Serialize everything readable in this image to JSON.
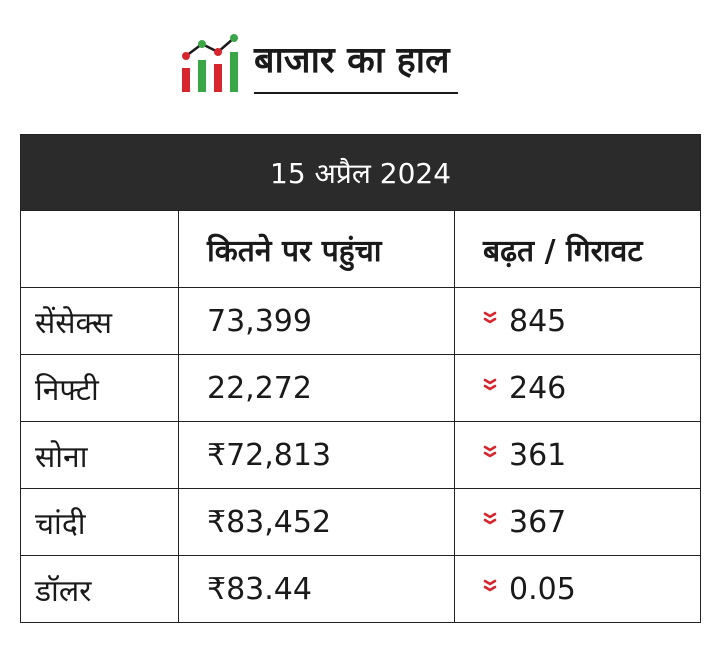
{
  "header": {
    "title": "बाजार का हाल",
    "logo_icon": "market-bar-chart-icon",
    "logo_colors": [
      "#d7262e",
      "#3aa648"
    ]
  },
  "table": {
    "date": "15 अप्रैल 2024",
    "columns": [
      "",
      "कितने पर पहुंचा",
      "बढ़त / गिरावट"
    ],
    "rows": [
      {
        "name": "सेंसेक्स",
        "value": "73,399",
        "change": "845",
        "direction": "down"
      },
      {
        "name": "निफ्टी",
        "value": "22,272",
        "change": "246",
        "direction": "down"
      },
      {
        "name": "सोना",
        "value": "₹72,813",
        "change": "361",
        "direction": "down"
      },
      {
        "name": "चांदी",
        "value": "₹83,452",
        "change": "367",
        "direction": "down"
      },
      {
        "name": "डॉलर",
        "value": "₹83.44",
        "change": "0.05",
        "direction": "down"
      }
    ],
    "down_icon": "double-chevron-down-icon",
    "down_color": "#d7262e",
    "header_bg": "#2b2b2b"
  }
}
